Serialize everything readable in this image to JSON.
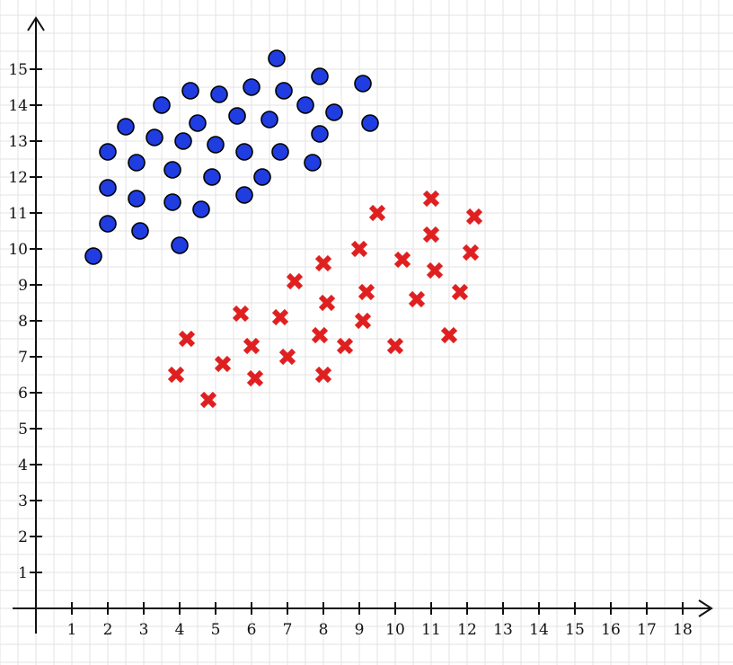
{
  "chart_data": {
    "type": "scatter",
    "title": "",
    "xlabel": "",
    "ylabel": "",
    "xlim": [
      -1,
      19
    ],
    "ylim": [
      -1.5,
      16.5
    ],
    "grid": true,
    "x_ticks": [
      "1",
      "2",
      "3",
      "4",
      "5",
      "6",
      "7",
      "8",
      "9",
      "10",
      "11",
      "12",
      "13",
      "14",
      "15",
      "16",
      "17",
      "18"
    ],
    "y_ticks": [
      "1",
      "2",
      "3",
      "4",
      "5",
      "6",
      "7",
      "8",
      "9",
      "10",
      "11",
      "12",
      "13",
      "14",
      "15"
    ],
    "series": [
      {
        "marker": "circle",
        "color": "#1f3de0",
        "points": [
          [
            1.6,
            9.8
          ],
          [
            2.0,
            10.7
          ],
          [
            2.0,
            11.7
          ],
          [
            2.0,
            12.7
          ],
          [
            2.5,
            13.4
          ],
          [
            2.8,
            12.4
          ],
          [
            2.8,
            11.4
          ],
          [
            2.9,
            10.5
          ],
          [
            3.3,
            13.1
          ],
          [
            3.5,
            14.0
          ],
          [
            3.8,
            12.2
          ],
          [
            3.8,
            11.3
          ],
          [
            4.0,
            10.1
          ],
          [
            4.1,
            13.0
          ],
          [
            4.3,
            14.4
          ],
          [
            4.5,
            13.5
          ],
          [
            4.6,
            11.1
          ],
          [
            4.9,
            12.0
          ],
          [
            5.0,
            12.9
          ],
          [
            5.1,
            14.3
          ],
          [
            5.6,
            13.7
          ],
          [
            5.8,
            12.7
          ],
          [
            5.8,
            11.5
          ],
          [
            6.0,
            14.5
          ],
          [
            6.3,
            12.0
          ],
          [
            6.5,
            13.6
          ],
          [
            6.7,
            15.3
          ],
          [
            6.8,
            12.7
          ],
          [
            6.9,
            14.4
          ],
          [
            7.5,
            14.0
          ],
          [
            7.7,
            12.4
          ],
          [
            7.9,
            14.8
          ],
          [
            7.9,
            13.2
          ],
          [
            8.3,
            13.8
          ],
          [
            9.1,
            14.6
          ],
          [
            9.3,
            13.5
          ]
        ]
      },
      {
        "marker": "x",
        "color": "#e02020",
        "points": [
          [
            3.9,
            6.5
          ],
          [
            4.2,
            7.5
          ],
          [
            4.8,
            5.8
          ],
          [
            5.2,
            6.8
          ],
          [
            5.7,
            8.2
          ],
          [
            6.0,
            7.3
          ],
          [
            6.1,
            6.4
          ],
          [
            6.8,
            8.1
          ],
          [
            7.0,
            7.0
          ],
          [
            7.2,
            9.1
          ],
          [
            7.9,
            7.6
          ],
          [
            8.0,
            9.6
          ],
          [
            8.0,
            6.5
          ],
          [
            8.1,
            8.5
          ],
          [
            8.6,
            7.3
          ],
          [
            9.0,
            10.0
          ],
          [
            9.1,
            8.0
          ],
          [
            9.2,
            8.8
          ],
          [
            9.5,
            11.0
          ],
          [
            10.0,
            7.3
          ],
          [
            10.2,
            9.7
          ],
          [
            10.6,
            8.6
          ],
          [
            11.0,
            10.4
          ],
          [
            11.0,
            11.4
          ],
          [
            11.1,
            9.4
          ],
          [
            11.5,
            7.6
          ],
          [
            11.8,
            8.8
          ],
          [
            12.1,
            9.9
          ],
          [
            12.2,
            10.9
          ]
        ]
      }
    ]
  }
}
